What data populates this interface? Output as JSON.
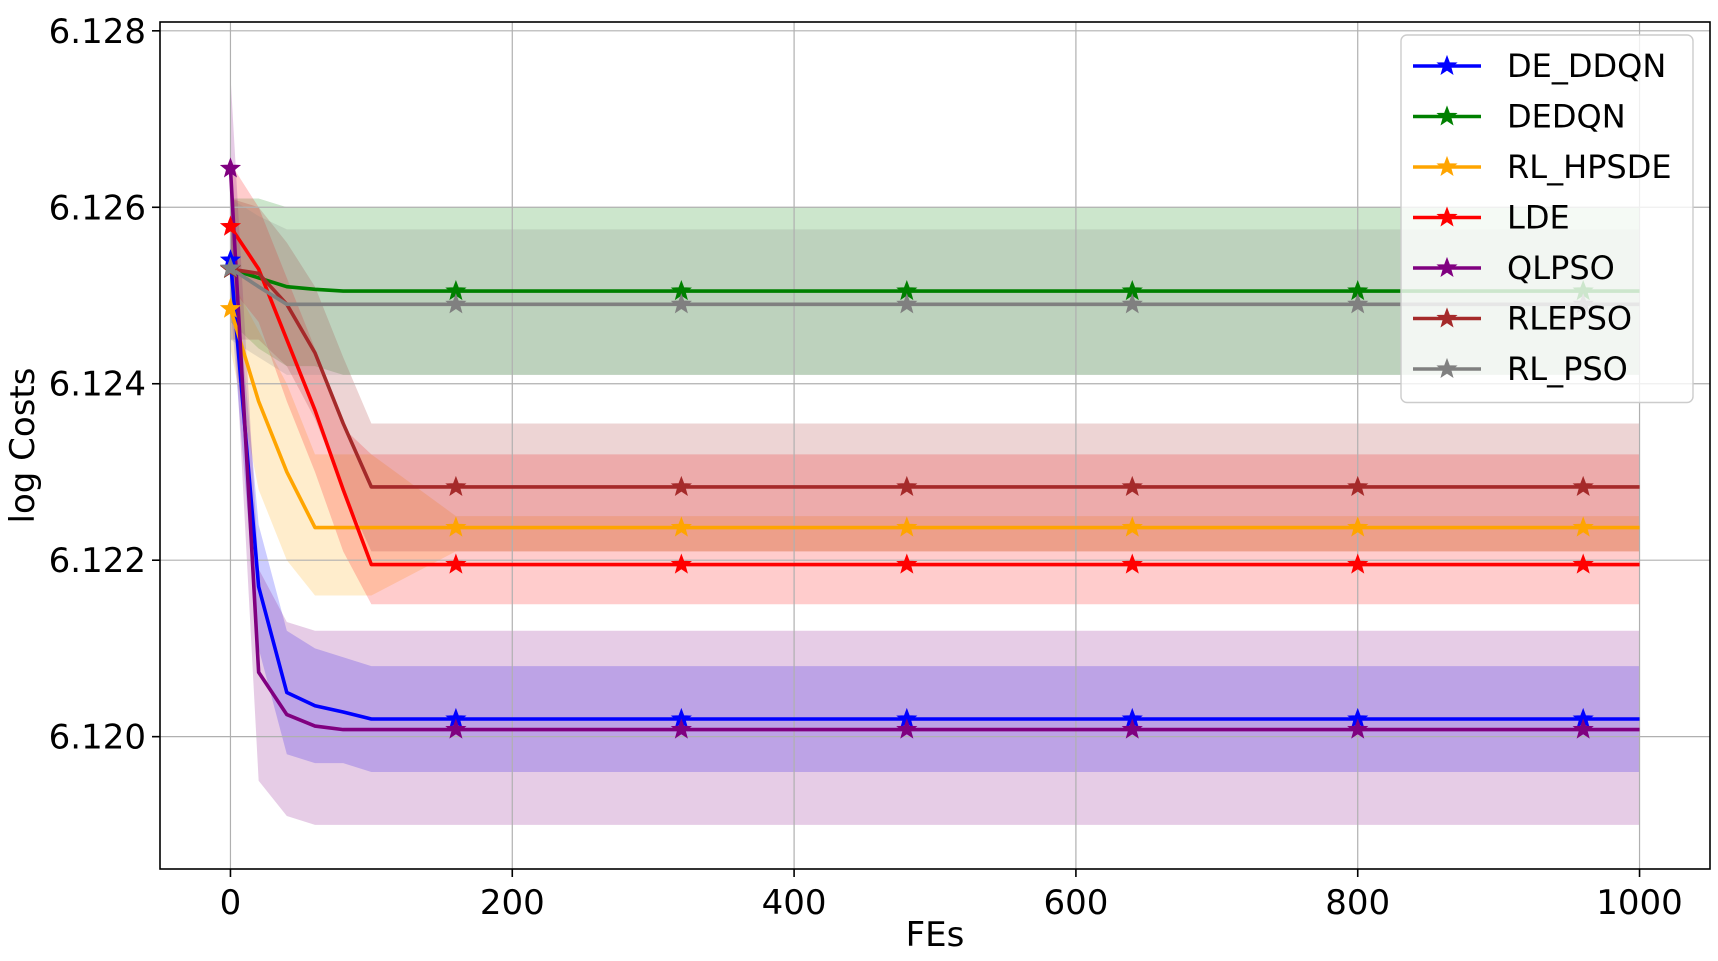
{
  "chart_data": {
    "type": "line",
    "xlabel": "FEs",
    "ylabel": "log Costs",
    "xlim": [
      -50,
      1050
    ],
    "ylim": [
      6.1185,
      6.1281
    ],
    "xticks": [
      0,
      200,
      400,
      600,
      800,
      1000
    ],
    "xtick_labels": [
      "0",
      "200",
      "400",
      "600",
      "800",
      "1000"
    ],
    "yticks": [
      6.12,
      6.122,
      6.124,
      6.126,
      6.128
    ],
    "ytick_labels": [
      "6.120",
      "6.122",
      "6.124",
      "6.126",
      "6.128"
    ],
    "grid": true,
    "legend_position": "top-right",
    "x": [
      0,
      20,
      40,
      60,
      80,
      100,
      160,
      320,
      480,
      640,
      800,
      960,
      1000
    ],
    "marker_x": [
      0,
      160,
      320,
      480,
      640,
      800,
      960
    ],
    "series": [
      {
        "name": "DE_DDQN",
        "color": "#0000ff",
        "values": [
          6.1254,
          6.1217,
          6.1205,
          6.12035,
          6.12028,
          6.1202,
          6.1202,
          6.1202,
          6.1202,
          6.1202,
          6.1202,
          6.1202,
          6.1202
        ],
        "lower": [
          6.1249,
          6.121,
          6.1198,
          6.1197,
          6.1197,
          6.1196,
          6.1196,
          6.1196,
          6.1196,
          6.1196,
          6.1196,
          6.1196,
          6.1196
        ],
        "upper": [
          6.1259,
          6.1224,
          6.1212,
          6.121,
          6.1209,
          6.1208,
          6.1208,
          6.1208,
          6.1208,
          6.1208,
          6.1208,
          6.1208,
          6.1208
        ]
      },
      {
        "name": "DEDQN",
        "color": "#008000",
        "values": [
          6.1253,
          6.1252,
          6.1251,
          6.12507,
          6.12505,
          6.12505,
          6.12505,
          6.12505,
          6.12505,
          6.12505,
          6.12505,
          6.12505,
          6.12505
        ],
        "lower": [
          6.1247,
          6.1244,
          6.1242,
          6.1242,
          6.1241,
          6.1241,
          6.1241,
          6.1241,
          6.1241,
          6.1241,
          6.1241,
          6.1241,
          6.1241
        ],
        "upper": [
          6.1261,
          6.1261,
          6.126,
          6.126,
          6.126,
          6.126,
          6.126,
          6.126,
          6.126,
          6.126,
          6.126,
          6.126,
          6.126
        ]
      },
      {
        "name": "RL_HPSDE",
        "color": "#ffa500",
        "values": [
          6.12485,
          6.1238,
          6.123,
          6.12237,
          6.12237,
          6.12237,
          6.12237,
          6.12237,
          6.12237,
          6.12237,
          6.12237,
          6.12237,
          6.12237
        ],
        "lower": [
          6.1244,
          6.1228,
          6.122,
          6.1216,
          6.1216,
          6.1216,
          6.1221,
          6.1221,
          6.1221,
          6.1221,
          6.1221,
          6.1221,
          6.1221
        ],
        "upper": [
          6.1252,
          6.1246,
          6.124,
          6.1232,
          6.1232,
          6.1232,
          6.1225,
          6.1225,
          6.1225,
          6.1225,
          6.1225,
          6.1225,
          6.1225
        ]
      },
      {
        "name": "LDE",
        "color": "#ff0000",
        "values": [
          6.12578,
          6.1253,
          6.1245,
          6.1237,
          6.1228,
          6.12195,
          6.12195,
          6.12195,
          6.12195,
          6.12195,
          6.12195,
          6.12195,
          6.12195
        ],
        "lower": [
          6.1251,
          6.1247,
          6.1238,
          6.123,
          6.1221,
          6.1215,
          6.1215,
          6.1215,
          6.1215,
          6.1215,
          6.1215,
          6.1215,
          6.1215
        ],
        "upper": [
          6.1265,
          6.126,
          6.1252,
          6.1244,
          6.1235,
          6.1232,
          6.1232,
          6.1232,
          6.1232,
          6.1232,
          6.1232,
          6.1232,
          6.1232
        ]
      },
      {
        "name": "QLPSO",
        "color": "#800080",
        "values": [
          6.12644,
          6.12073,
          6.12025,
          6.12012,
          6.12008,
          6.12008,
          6.12008,
          6.12008,
          6.12008,
          6.12008,
          6.12008,
          6.12008,
          6.12008
        ],
        "lower": [
          6.1255,
          6.1195,
          6.1191,
          6.119,
          6.119,
          6.119,
          6.119,
          6.119,
          6.119,
          6.119,
          6.119,
          6.119,
          6.119
        ],
        "upper": [
          6.1275,
          6.1219,
          6.1213,
          6.1212,
          6.1212,
          6.1212,
          6.1212,
          6.1212,
          6.1212,
          6.1212,
          6.1212,
          6.1212,
          6.1212
        ]
      },
      {
        "name": "RLEPSO",
        "color": "#a52a2a",
        "values": [
          6.1253,
          6.12525,
          6.1249,
          6.12435,
          6.12355,
          6.12283,
          6.12283,
          6.12283,
          6.12283,
          6.12283,
          6.12283,
          6.12283,
          6.12283
        ],
        "lower": [
          6.1245,
          6.1245,
          6.1242,
          6.1236,
          6.1228,
          6.1221,
          6.1221,
          6.1221,
          6.1221,
          6.1221,
          6.1221,
          6.1221,
          6.1221
        ],
        "upper": [
          6.1261,
          6.126,
          6.1256,
          6.1251,
          6.1243,
          6.12355,
          6.12355,
          6.12355,
          6.12355,
          6.12355,
          6.12355,
          6.12355,
          6.12355
        ]
      },
      {
        "name": "RL_PSO",
        "color": "#808080",
        "values": [
          6.12531,
          6.1251,
          6.1249,
          6.1249,
          6.1249,
          6.1249,
          6.1249,
          6.1249,
          6.1249,
          6.1249,
          6.1249,
          6.1249,
          6.1249
        ],
        "lower": [
          6.1245,
          6.1243,
          6.1241,
          6.1241,
          6.1241,
          6.1241,
          6.1241,
          6.1241,
          6.1241,
          6.1241,
          6.1241,
          6.1241,
          6.1241
        ],
        "upper": [
          6.1261,
          6.1259,
          6.12575,
          6.12575,
          6.12575,
          6.12575,
          6.12575,
          6.12575,
          6.12575,
          6.12575,
          6.12575,
          6.12575,
          6.12575
        ]
      }
    ]
  }
}
